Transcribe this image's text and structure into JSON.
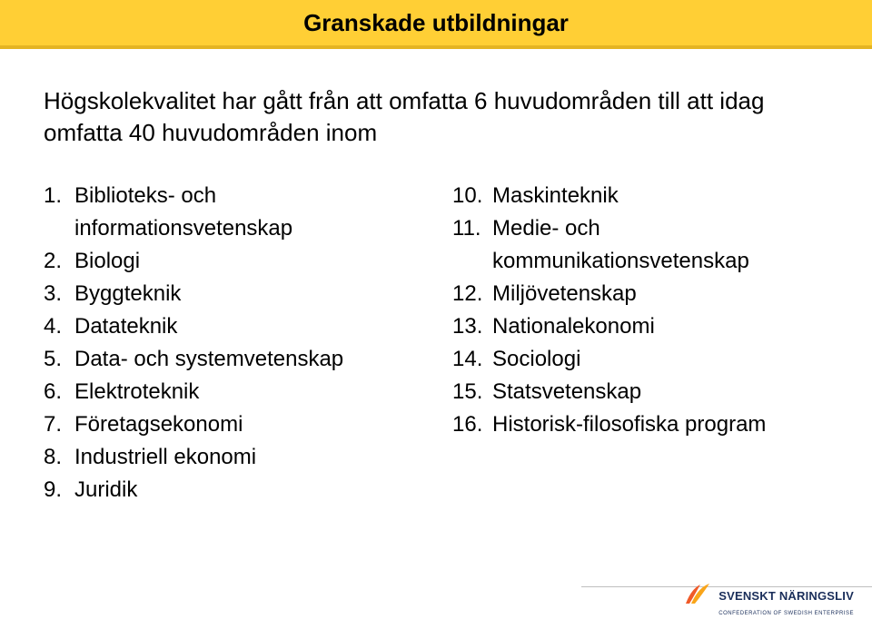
{
  "colors": {
    "topbar_bg": "#ffcf35",
    "topbar_border": "#e4b423",
    "text": "#000000",
    "logo_text": "#1a2e5a",
    "logo_mark1": "#f05a28",
    "logo_mark2": "#f9a51a",
    "separator": "#bfbfbf"
  },
  "title": "Granskade utbildningar",
  "intro": "Högskolekvalitet har gått från att omfatta 6 huvudområden till att idag omfatta 40 huvudområden inom",
  "list_left": [
    {
      "n": "1.",
      "t": "Biblioteks- och informationsvetenskap"
    },
    {
      "n": "2.",
      "t": "Biologi"
    },
    {
      "n": "3.",
      "t": "Byggteknik"
    },
    {
      "n": "4.",
      "t": "Datateknik"
    },
    {
      "n": "5.",
      "t": "Data- och systemvetenskap"
    },
    {
      "n": "6.",
      "t": "Elektroteknik"
    },
    {
      "n": "7.",
      "t": "Företagsekonomi"
    },
    {
      "n": "8.",
      "t": "Industriell ekonomi"
    },
    {
      "n": "9.",
      "t": "Juridik"
    }
  ],
  "list_right": [
    {
      "n": "10.",
      "t": "Maskinteknik"
    },
    {
      "n": "11.",
      "t": "Medie- och kommunikationsvetenskap"
    },
    {
      "n": "12.",
      "t": "Miljövetenskap"
    },
    {
      "n": "13.",
      "t": "Nationalekonomi"
    },
    {
      "n": "14.",
      "t": "Sociologi"
    },
    {
      "n": "15.",
      "t": "Statsvetenskap"
    },
    {
      "n": "16.",
      "t": "Historisk-filosofiska program"
    }
  ],
  "logo": {
    "text": "SVENSKT NÄRINGSLIV",
    "sub": "CONFEDERATION OF SWEDISH ENTERPRISE"
  },
  "typography": {
    "title_fontsize": 26,
    "intro_fontsize": 26,
    "item_fontsize": 24,
    "logo_fontsize": 13,
    "logo_sub_fontsize": 6
  }
}
